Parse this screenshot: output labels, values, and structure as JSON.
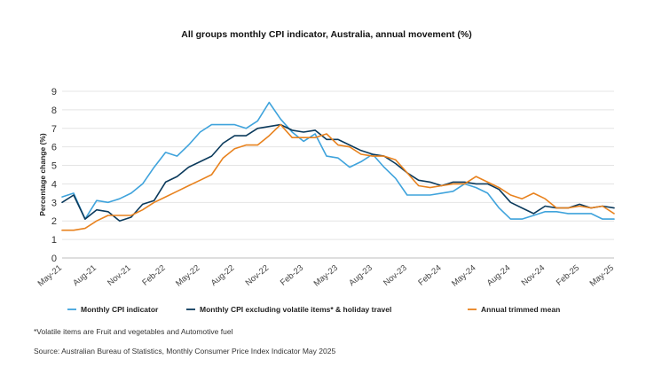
{
  "chart_data": {
    "type": "line",
    "title": "All groups monthly CPI indicator, Australia, annual movement (%)",
    "ylabel": "Percentage change (%)",
    "xlabel": "",
    "ylim": [
      0,
      9
    ],
    "yticks": [
      0,
      1,
      2,
      3,
      4,
      5,
      6,
      7,
      8,
      9
    ],
    "grid": true,
    "legend_position": "bottom",
    "x": [
      "May-21",
      "Jun-21",
      "Jul-21",
      "Aug-21",
      "Sep-21",
      "Oct-21",
      "Nov-21",
      "Dec-21",
      "Jan-22",
      "Feb-22",
      "Mar-22",
      "Apr-22",
      "May-22",
      "Jun-22",
      "Jul-22",
      "Aug-22",
      "Sep-22",
      "Oct-22",
      "Nov-22",
      "Dec-22",
      "Jan-23",
      "Feb-23",
      "Mar-23",
      "Apr-23",
      "May-23",
      "Jun-23",
      "Jul-23",
      "Aug-23",
      "Sep-23",
      "Oct-23",
      "Nov-23",
      "Dec-23",
      "Jan-24",
      "Feb-24",
      "Mar-24",
      "Apr-24",
      "May-24",
      "Jun-24",
      "Jul-24",
      "Aug-24",
      "Sep-24",
      "Oct-24",
      "Nov-24",
      "Dec-24",
      "Jan-25",
      "Feb-25",
      "Mar-25",
      "Apr-25",
      "May-25"
    ],
    "xtick_labels": [
      "May-21",
      "Aug-21",
      "Nov-21",
      "Feb-22",
      "May-22",
      "Aug-22",
      "Nov-22",
      "Feb-23",
      "May-23",
      "Aug-23",
      "Nov-23",
      "Feb-24",
      "May-24",
      "Aug-24",
      "Nov-24",
      "Feb-25",
      "May-25"
    ],
    "series": [
      {
        "name": "Monthly CPI indicator",
        "color": "#3fa3dc",
        "values": [
          3.3,
          3.5,
          2.1,
          3.1,
          3.0,
          3.2,
          3.5,
          4.0,
          4.9,
          5.7,
          5.5,
          6.1,
          6.8,
          7.2,
          7.2,
          7.2,
          7.0,
          7.4,
          8.4,
          7.5,
          6.8,
          6.3,
          6.7,
          5.5,
          5.4,
          4.9,
          5.2,
          5.6,
          4.9,
          4.3,
          3.4,
          3.4,
          3.4,
          3.5,
          3.6,
          4.0,
          3.8,
          3.5,
          2.7,
          2.1,
          2.1,
          2.3,
          2.5,
          2.5,
          2.4,
          2.4,
          2.4,
          2.1,
          2.1
        ]
      },
      {
        "name": "Monthly CPI excluding volatile items* & holiday travel",
        "color": "#0b3a5c",
        "values": [
          3.0,
          3.4,
          2.1,
          2.6,
          2.5,
          2.0,
          2.2,
          2.9,
          3.1,
          4.1,
          4.4,
          4.9,
          5.2,
          5.5,
          6.2,
          6.6,
          6.6,
          7.0,
          7.1,
          7.2,
          6.9,
          6.8,
          6.9,
          6.4,
          6.4,
          6.1,
          5.8,
          5.6,
          5.5,
          5.1,
          4.6,
          4.2,
          4.1,
          3.9,
          4.1,
          4.1,
          4.0,
          4.0,
          3.7,
          3.0,
          2.7,
          2.4,
          2.8,
          2.7,
          2.7,
          2.9,
          2.7,
          2.8,
          2.7
        ]
      },
      {
        "name": "Annual trimmed mean",
        "color": "#e8821e",
        "values": [
          1.5,
          1.5,
          1.6,
          2.0,
          2.3,
          2.3,
          2.3,
          2.6,
          3.0,
          3.3,
          3.6,
          3.9,
          4.2,
          4.5,
          5.4,
          5.9,
          6.1,
          6.1,
          6.6,
          7.2,
          6.5,
          6.5,
          6.5,
          6.7,
          6.1,
          6.0,
          5.6,
          5.5,
          5.5,
          5.3,
          4.6,
          3.9,
          3.8,
          3.9,
          4.0,
          4.0,
          4.4,
          4.1,
          3.8,
          3.4,
          3.2,
          3.5,
          3.2,
          2.7,
          2.7,
          2.8,
          2.7,
          2.8,
          2.4
        ]
      }
    ],
    "footnote": "*Volatile items are Fruit and vegetables and Automotive fuel",
    "source": "Source: Australian Bureau of Statistics, Monthly Consumer Price Index Indicator May 2025"
  }
}
